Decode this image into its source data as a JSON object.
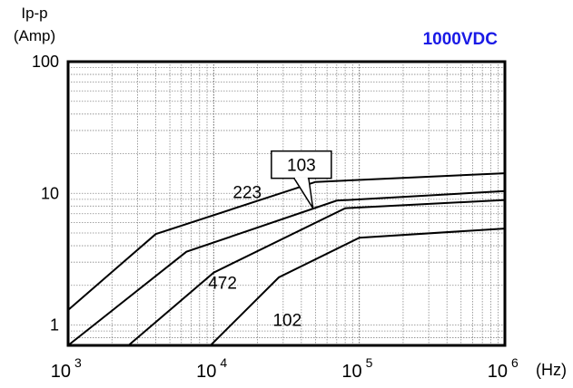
{
  "chart_data": {
    "type": "line",
    "title": "1000VDC",
    "title_color": "#1a1ae6",
    "ylabel_lines": [
      "Ip-p",
      "(Amp)"
    ],
    "xlabel": "(Hz)",
    "x_scale": "log",
    "y_scale": "log",
    "xlim": [
      1000,
      1000000
    ],
    "ylim": [
      0.7,
      100
    ],
    "grid": true,
    "x_ticks": [
      {
        "value": 1000,
        "base": "10",
        "exp": "3"
      },
      {
        "value": 10000,
        "base": "10",
        "exp": "4"
      },
      {
        "value": 100000,
        "base": "10",
        "exp": "5"
      },
      {
        "value": 1000000,
        "base": "10",
        "exp": "6"
      }
    ],
    "y_ticks": [
      {
        "value": 1,
        "label": "1"
      },
      {
        "value": 10,
        "label": "10"
      },
      {
        "value": 100,
        "label": "100"
      }
    ],
    "series": [
      {
        "name": "223",
        "x": [
          1000,
          4000,
          50000,
          1000000
        ],
        "y": [
          1.3,
          4.9,
          12.2,
          14.2
        ]
      },
      {
        "name": "103",
        "x": [
          1000,
          6500,
          70000,
          1000000
        ],
        "y": [
          0.7,
          3.6,
          8.8,
          10.4
        ]
      },
      {
        "name": "472",
        "x": [
          2600,
          10000,
          80000,
          1000000
        ],
        "y": [
          0.7,
          2.5,
          7.7,
          8.9
        ]
      },
      {
        "name": "102",
        "x": [
          9500,
          28000,
          100000,
          1000000
        ],
        "y": [
          0.7,
          2.3,
          4.6,
          5.4
        ]
      }
    ],
    "annotations": [
      {
        "series": "223",
        "text": "223",
        "x": 17000,
        "y": 10.3
      },
      {
        "series": "103",
        "text": "103",
        "x": 40000,
        "y": 16.5,
        "boxed": true,
        "arrow_to": {
          "x": 48000,
          "y": 7.7
        }
      },
      {
        "series": "472",
        "text": "472",
        "x": 11500,
        "y": 2.1
      },
      {
        "series": "102",
        "text": "102",
        "x": 32000,
        "y": 1.1
      }
    ]
  }
}
